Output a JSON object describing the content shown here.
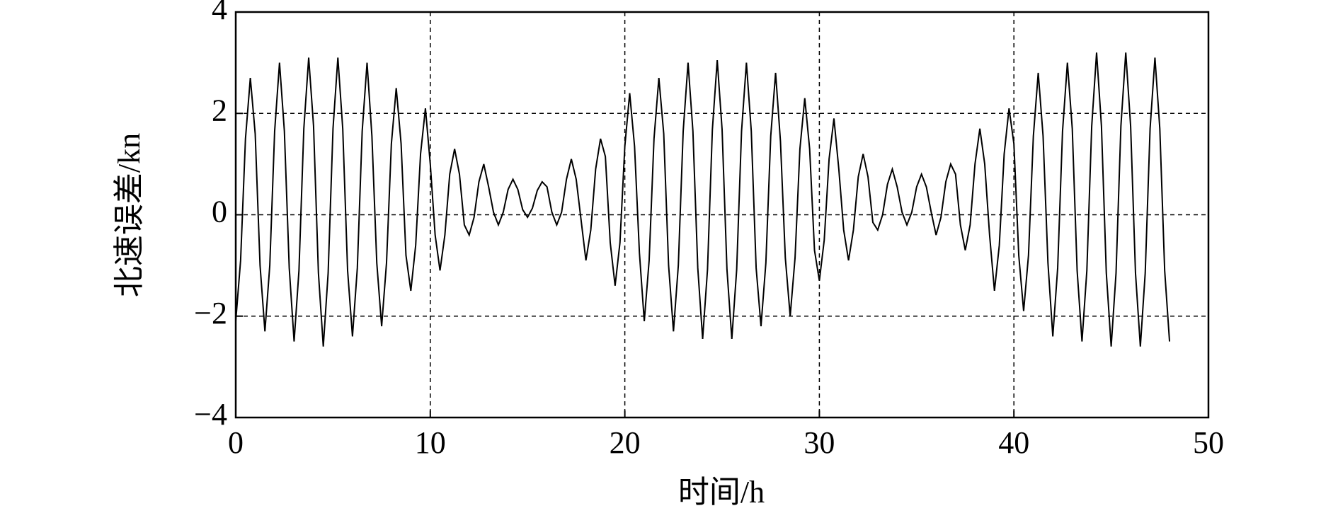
{
  "chart_data": {
    "type": "line",
    "x_label": "时间/h",
    "y_label": "北速误差/kn",
    "xlim": [
      0,
      50
    ],
    "xticks": [
      0,
      10,
      20,
      30,
      40,
      50
    ],
    "ylim": [
      -4,
      4
    ],
    "yticks": [
      {
        "value": -4,
        "label": "−4"
      },
      {
        "value": -2,
        "label": "−2"
      },
      0,
      2,
      4
    ],
    "grid": true,
    "x": [
      0,
      0.25,
      0.5,
      0.75,
      1,
      1.25,
      1.5,
      1.75,
      2,
      2.25,
      2.5,
      2.75,
      3,
      3.25,
      3.5,
      3.75,
      4,
      4.25,
      4.5,
      4.75,
      5,
      5.25,
      5.5,
      5.75,
      6,
      6.25,
      6.5,
      6.75,
      7,
      7.25,
      7.5,
      7.75,
      8,
      8.25,
      8.5,
      8.75,
      9,
      9.25,
      9.5,
      9.75,
      10,
      10.25,
      10.5,
      10.75,
      11,
      11.25,
      11.5,
      11.75,
      12,
      12.25,
      12.5,
      12.75,
      13,
      13.25,
      13.5,
      13.75,
      14,
      14.25,
      14.5,
      14.75,
      15,
      15.25,
      15.5,
      15.75,
      16,
      16.25,
      16.5,
      16.75,
      17,
      17.25,
      17.5,
      17.75,
      18,
      18.25,
      18.5,
      18.75,
      19,
      19.25,
      19.5,
      19.75,
      20,
      20.25,
      20.5,
      20.75,
      21,
      21.25,
      21.5,
      21.75,
      22,
      22.25,
      22.5,
      22.75,
      23,
      23.25,
      23.5,
      23.75,
      24,
      24.25,
      24.5,
      24.75,
      25,
      25.25,
      25.5,
      25.75,
      26,
      26.25,
      26.5,
      26.75,
      27,
      27.25,
      27.5,
      27.75,
      28,
      28.25,
      28.5,
      28.75,
      29,
      29.25,
      29.5,
      29.75,
      30,
      30.25,
      30.5,
      30.75,
      31,
      31.25,
      31.5,
      31.75,
      32,
      32.25,
      32.5,
      32.75,
      33,
      33.25,
      33.5,
      33.75,
      34,
      34.25,
      34.5,
      34.75,
      35,
      35.25,
      35.5,
      35.75,
      36,
      36.25,
      36.5,
      36.75,
      37,
      37.25,
      37.5,
      37.75,
      38,
      38.25,
      38.5,
      38.75,
      39,
      39.25,
      39.5,
      39.75,
      40,
      40.25,
      40.5,
      40.75,
      41,
      41.25,
      41.5,
      41.75,
      42,
      42.25,
      42.5,
      42.75,
      43,
      43.25,
      43.5,
      43.75,
      44,
      44.25,
      44.5,
      44.75,
      45,
      45.25,
      45.5,
      45.75,
      46,
      46.25,
      46.5,
      46.75,
      47,
      47.25,
      47.5,
      47.75,
      48
    ],
    "series": [
      {
        "color": "#000000",
        "values": [
          -2.1,
          -0.9,
          1.5,
          2.7,
          1.6,
          -1.0,
          -2.3,
          -1.0,
          1.65,
          3.0,
          1.65,
          -1.05,
          -2.5,
          -1.1,
          1.7,
          3.1,
          1.75,
          -1.15,
          -2.6,
          -1.15,
          1.7,
          3.1,
          1.7,
          -1.1,
          -2.4,
          -1.05,
          1.65,
          3.0,
          1.55,
          -0.95,
          -2.2,
          -0.95,
          1.4,
          2.5,
          1.4,
          -0.8,
          -1.5,
          -0.6,
          1.2,
          2.1,
          1.0,
          -0.4,
          -1.1,
          -0.4,
          0.8,
          1.3,
          0.8,
          -0.2,
          -0.4,
          -0.05,
          0.65,
          1.0,
          0.55,
          0.05,
          -0.2,
          0.05,
          0.5,
          0.7,
          0.5,
          0.1,
          -0.05,
          0.13,
          0.48,
          0.65,
          0.55,
          0.05,
          -0.2,
          0.05,
          0.7,
          1.1,
          0.7,
          -0.1,
          -0.9,
          -0.3,
          0.9,
          1.5,
          1.15,
          -0.55,
          -1.4,
          -0.55,
          1.35,
          2.4,
          1.35,
          -0.75,
          -2.1,
          -0.9,
          1.5,
          2.7,
          1.6,
          -1.0,
          -2.3,
          -1.0,
          1.65,
          3.0,
          1.65,
          -1.05,
          -2.45,
          -1.08,
          1.68,
          3.05,
          1.68,
          -1.08,
          -2.45,
          -1.08,
          1.65,
          3.0,
          1.65,
          -1.05,
          -2.2,
          -0.95,
          1.55,
          2.8,
          1.45,
          -0.85,
          -2.0,
          -0.85,
          1.3,
          2.3,
          1.3,
          -0.7,
          -1.3,
          -0.5,
          1.1,
          1.9,
          0.9,
          -0.3,
          -0.9,
          -0.3,
          0.75,
          1.2,
          0.75,
          -0.15,
          -0.3,
          0.0,
          0.6,
          0.9,
          0.55,
          0.05,
          -0.2,
          0.05,
          0.55,
          0.8,
          0.55,
          0.05,
          -0.4,
          -0.05,
          0.65,
          1.0,
          0.8,
          -0.2,
          -0.7,
          -0.2,
          1.0,
          1.7,
          1.0,
          -0.4,
          -1.5,
          -0.6,
          1.2,
          2.1,
          1.4,
          -0.8,
          -1.9,
          -0.8,
          1.55,
          2.8,
          1.55,
          -0.95,
          -2.4,
          -1.05,
          1.65,
          3.0,
          1.7,
          -1.1,
          -2.5,
          -1.1,
          1.75,
          3.2,
          1.75,
          -1.15,
          -2.6,
          -1.15,
          1.75,
          3.2,
          1.75,
          -1.15,
          -2.6,
          -1.15,
          1.7,
          3.1,
          1.7,
          -1.1,
          -2.5
        ]
      }
    ]
  }
}
